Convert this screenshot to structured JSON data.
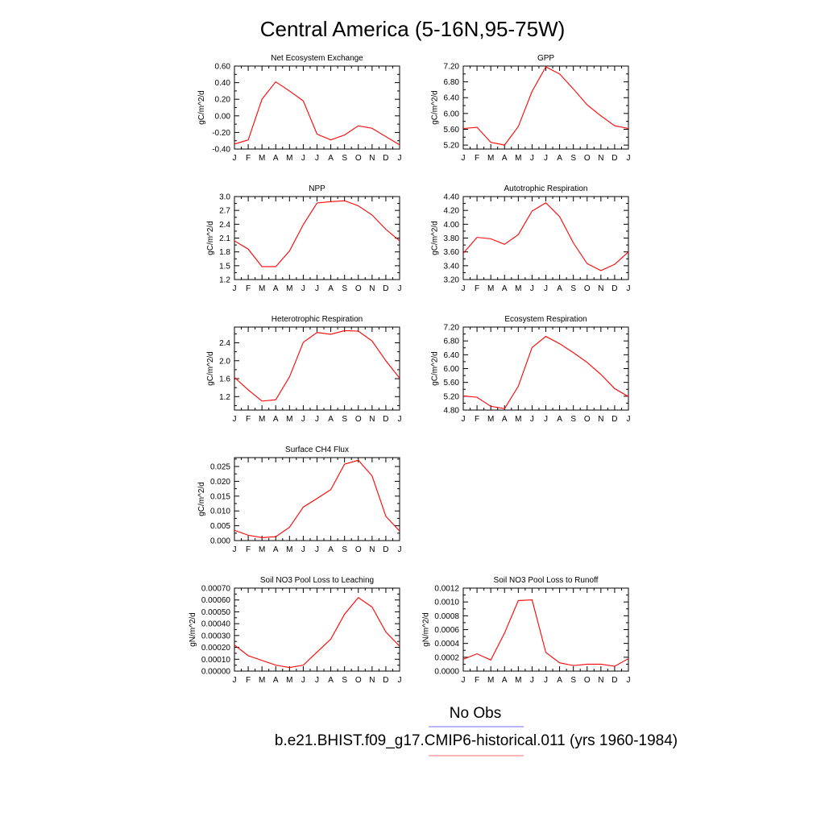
{
  "figure": {
    "title": "Central America (5-16N,95-75W)"
  },
  "legend": {
    "entries": [
      {
        "label": "No Obs",
        "color": "#6f6ff0"
      },
      {
        "label": "b.e21.BHIST.f09_g17.CMIP6-historical.011 (yrs 1960-1984)",
        "color": "#f06f6f"
      }
    ]
  },
  "colors": {
    "series": "#ff0000",
    "axis": "#000000"
  },
  "chart_data": [
    {
      "type": "line",
      "title": "Net Ecosystem Exchange",
      "ylabel": "gC/m^2/d",
      "x": [
        "J",
        "F",
        "M",
        "A",
        "M",
        "J",
        "J",
        "A",
        "S",
        "O",
        "N",
        "D",
        "J"
      ],
      "ylim": [
        -0.4,
        0.6
      ],
      "yticks": [
        "0.60",
        "0.40",
        "0.20",
        "0.00",
        "-0.20",
        "-0.40"
      ],
      "ytick_values": [
        0.6,
        0.4,
        0.2,
        0.0,
        -0.2,
        -0.4
      ],
      "series": [
        {
          "values": [
            -0.34,
            -0.29,
            0.2,
            0.41,
            0.3,
            0.18,
            -0.22,
            -0.29,
            -0.23,
            -0.12,
            -0.15,
            -0.25,
            -0.35
          ]
        }
      ]
    },
    {
      "type": "line",
      "title": "GPP",
      "ylabel": "gC/m^2/d",
      "x": [
        "J",
        "F",
        "M",
        "A",
        "M",
        "J",
        "J",
        "A",
        "S",
        "O",
        "N",
        "D",
        "J"
      ],
      "ylim": [
        5.1,
        7.2
      ],
      "yticks": [
        "7.20",
        "6.80",
        "6.40",
        "6.00",
        "5.60",
        "5.20"
      ],
      "ytick_values": [
        7.2,
        6.8,
        6.4,
        6.0,
        5.6,
        5.2
      ],
      "series": [
        {
          "values": [
            5.62,
            5.65,
            5.27,
            5.2,
            5.67,
            6.56,
            7.18,
            7.0,
            6.62,
            6.22,
            5.94,
            5.69,
            5.62
          ]
        }
      ]
    },
    {
      "type": "line",
      "title": "NPP",
      "ylabel": "gC/m^2/d",
      "x": [
        "J",
        "F",
        "M",
        "A",
        "M",
        "J",
        "J",
        "A",
        "S",
        "O",
        "N",
        "D",
        "J"
      ],
      "ylim": [
        1.2,
        3.0
      ],
      "yticks": [
        "3.0",
        "2.7",
        "2.4",
        "2.1",
        "1.8",
        "1.5",
        "1.2"
      ],
      "ytick_values": [
        3.0,
        2.7,
        2.4,
        2.1,
        1.8,
        1.5,
        1.2
      ],
      "series": [
        {
          "values": [
            2.04,
            1.86,
            1.48,
            1.48,
            1.82,
            2.39,
            2.86,
            2.89,
            2.91,
            2.8,
            2.6,
            2.29,
            2.04
          ]
        }
      ]
    },
    {
      "type": "line",
      "title": "Autotrophic Respiration",
      "ylabel": "gC/m^2/d",
      "x": [
        "J",
        "F",
        "M",
        "A",
        "M",
        "J",
        "J",
        "A",
        "S",
        "O",
        "N",
        "D",
        "J"
      ],
      "ylim": [
        3.2,
        4.4
      ],
      "yticks": [
        "4.40",
        "4.20",
        "4.00",
        "3.80",
        "3.60",
        "3.40",
        "3.20"
      ],
      "ytick_values": [
        4.4,
        4.2,
        4.0,
        3.8,
        3.6,
        3.4,
        3.2
      ],
      "series": [
        {
          "values": [
            3.58,
            3.81,
            3.79,
            3.71,
            3.85,
            4.19,
            4.31,
            4.11,
            3.73,
            3.43,
            3.33,
            3.42,
            3.6
          ]
        }
      ]
    },
    {
      "type": "line",
      "title": "Heterotrophic Respiration",
      "ylabel": "gC/m^2/d",
      "x": [
        "J",
        "F",
        "M",
        "A",
        "M",
        "J",
        "J",
        "A",
        "S",
        "O",
        "N",
        "D",
        "J"
      ],
      "ylim": [
        0.9,
        2.75
      ],
      "yticks": [
        "2.4",
        "2.0",
        "1.6",
        "1.2"
      ],
      "ytick_values": [
        2.4,
        2.0,
        1.6,
        1.2
      ],
      "series": [
        {
          "values": [
            1.63,
            1.35,
            1.1,
            1.13,
            1.64,
            2.41,
            2.63,
            2.59,
            2.67,
            2.66,
            2.44,
            2.0,
            1.61
          ]
        }
      ]
    },
    {
      "type": "line",
      "title": "Ecosystem Respiration",
      "ylabel": "gC/m^2/d",
      "x": [
        "J",
        "F",
        "M",
        "A",
        "M",
        "J",
        "J",
        "A",
        "S",
        "O",
        "N",
        "D",
        "J"
      ],
      "ylim": [
        4.8,
        7.2
      ],
      "yticks": [
        "7.20",
        "6.80",
        "6.40",
        "6.00",
        "5.60",
        "5.20",
        "4.80"
      ],
      "ytick_values": [
        7.2,
        6.8,
        6.4,
        6.0,
        5.6,
        5.2,
        4.8
      ],
      "series": [
        {
          "values": [
            5.21,
            5.17,
            4.91,
            4.84,
            5.49,
            6.61,
            6.93,
            6.72,
            6.46,
            6.18,
            5.83,
            5.42,
            5.19
          ]
        }
      ]
    },
    {
      "type": "line",
      "title": "Surface CH4 Flux",
      "ylabel": "gC/m^2/d",
      "x": [
        "J",
        "F",
        "M",
        "A",
        "M",
        "J",
        "J",
        "A",
        "S",
        "O",
        "N",
        "D",
        "J"
      ],
      "ylim": [
        0.0,
        0.028
      ],
      "yticks": [
        "0.025",
        "0.020",
        "0.015",
        "0.010",
        "0.005",
        "0.000"
      ],
      "ytick_values": [
        0.025,
        0.02,
        0.015,
        0.01,
        0.005,
        0.0
      ],
      "series": [
        {
          "values": [
            0.0035,
            0.0018,
            0.001,
            0.0013,
            0.0045,
            0.0113,
            0.0142,
            0.0172,
            0.0258,
            0.0271,
            0.0218,
            0.0082,
            0.0032
          ]
        }
      ]
    },
    {
      "type": "line",
      "title": "Soil NO3 Pool Loss to Leaching",
      "ylabel": "gN/m^2/d",
      "x": [
        "J",
        "F",
        "M",
        "A",
        "M",
        "J",
        "J",
        "A",
        "S",
        "O",
        "N",
        "D",
        "J"
      ],
      "ylim": [
        0.0,
        0.0007
      ],
      "yticks": [
        "0.00070",
        "0.00060",
        "0.00050",
        "0.00040",
        "0.00030",
        "0.00020",
        "0.00010",
        "0.00000"
      ],
      "ytick_values": [
        0.0007,
        0.0006,
        0.0005,
        0.0004,
        0.0003,
        0.0002,
        0.0001,
        0.0
      ],
      "series": [
        {
          "values": [
            0.00022,
            0.00013,
            9e-05,
            5e-05,
            3e-05,
            5e-05,
            0.00016,
            0.00027,
            0.00048,
            0.00062,
            0.00054,
            0.00033,
            0.00021
          ]
        }
      ]
    },
    {
      "type": "line",
      "title": "Soil NO3 Pool Loss to Runoff",
      "ylabel": "gN/m^2/d",
      "x": [
        "J",
        "F",
        "M",
        "A",
        "M",
        "J",
        "J",
        "A",
        "S",
        "O",
        "N",
        "D",
        "J"
      ],
      "ylim": [
        0.0,
        0.0012
      ],
      "yticks": [
        "0.0012",
        "0.0010",
        "0.0008",
        "0.0006",
        "0.0004",
        "0.0002",
        "0.0000"
      ],
      "ytick_values": [
        0.0012,
        0.001,
        0.0008,
        0.0006,
        0.0004,
        0.0002,
        0.0
      ],
      "series": [
        {
          "values": [
            0.00017,
            0.00025,
            0.00016,
            0.00055,
            0.00102,
            0.00103,
            0.00027,
            0.00012,
            8e-05,
            0.0001,
            0.0001,
            7e-05,
            0.00018
          ]
        }
      ]
    }
  ]
}
